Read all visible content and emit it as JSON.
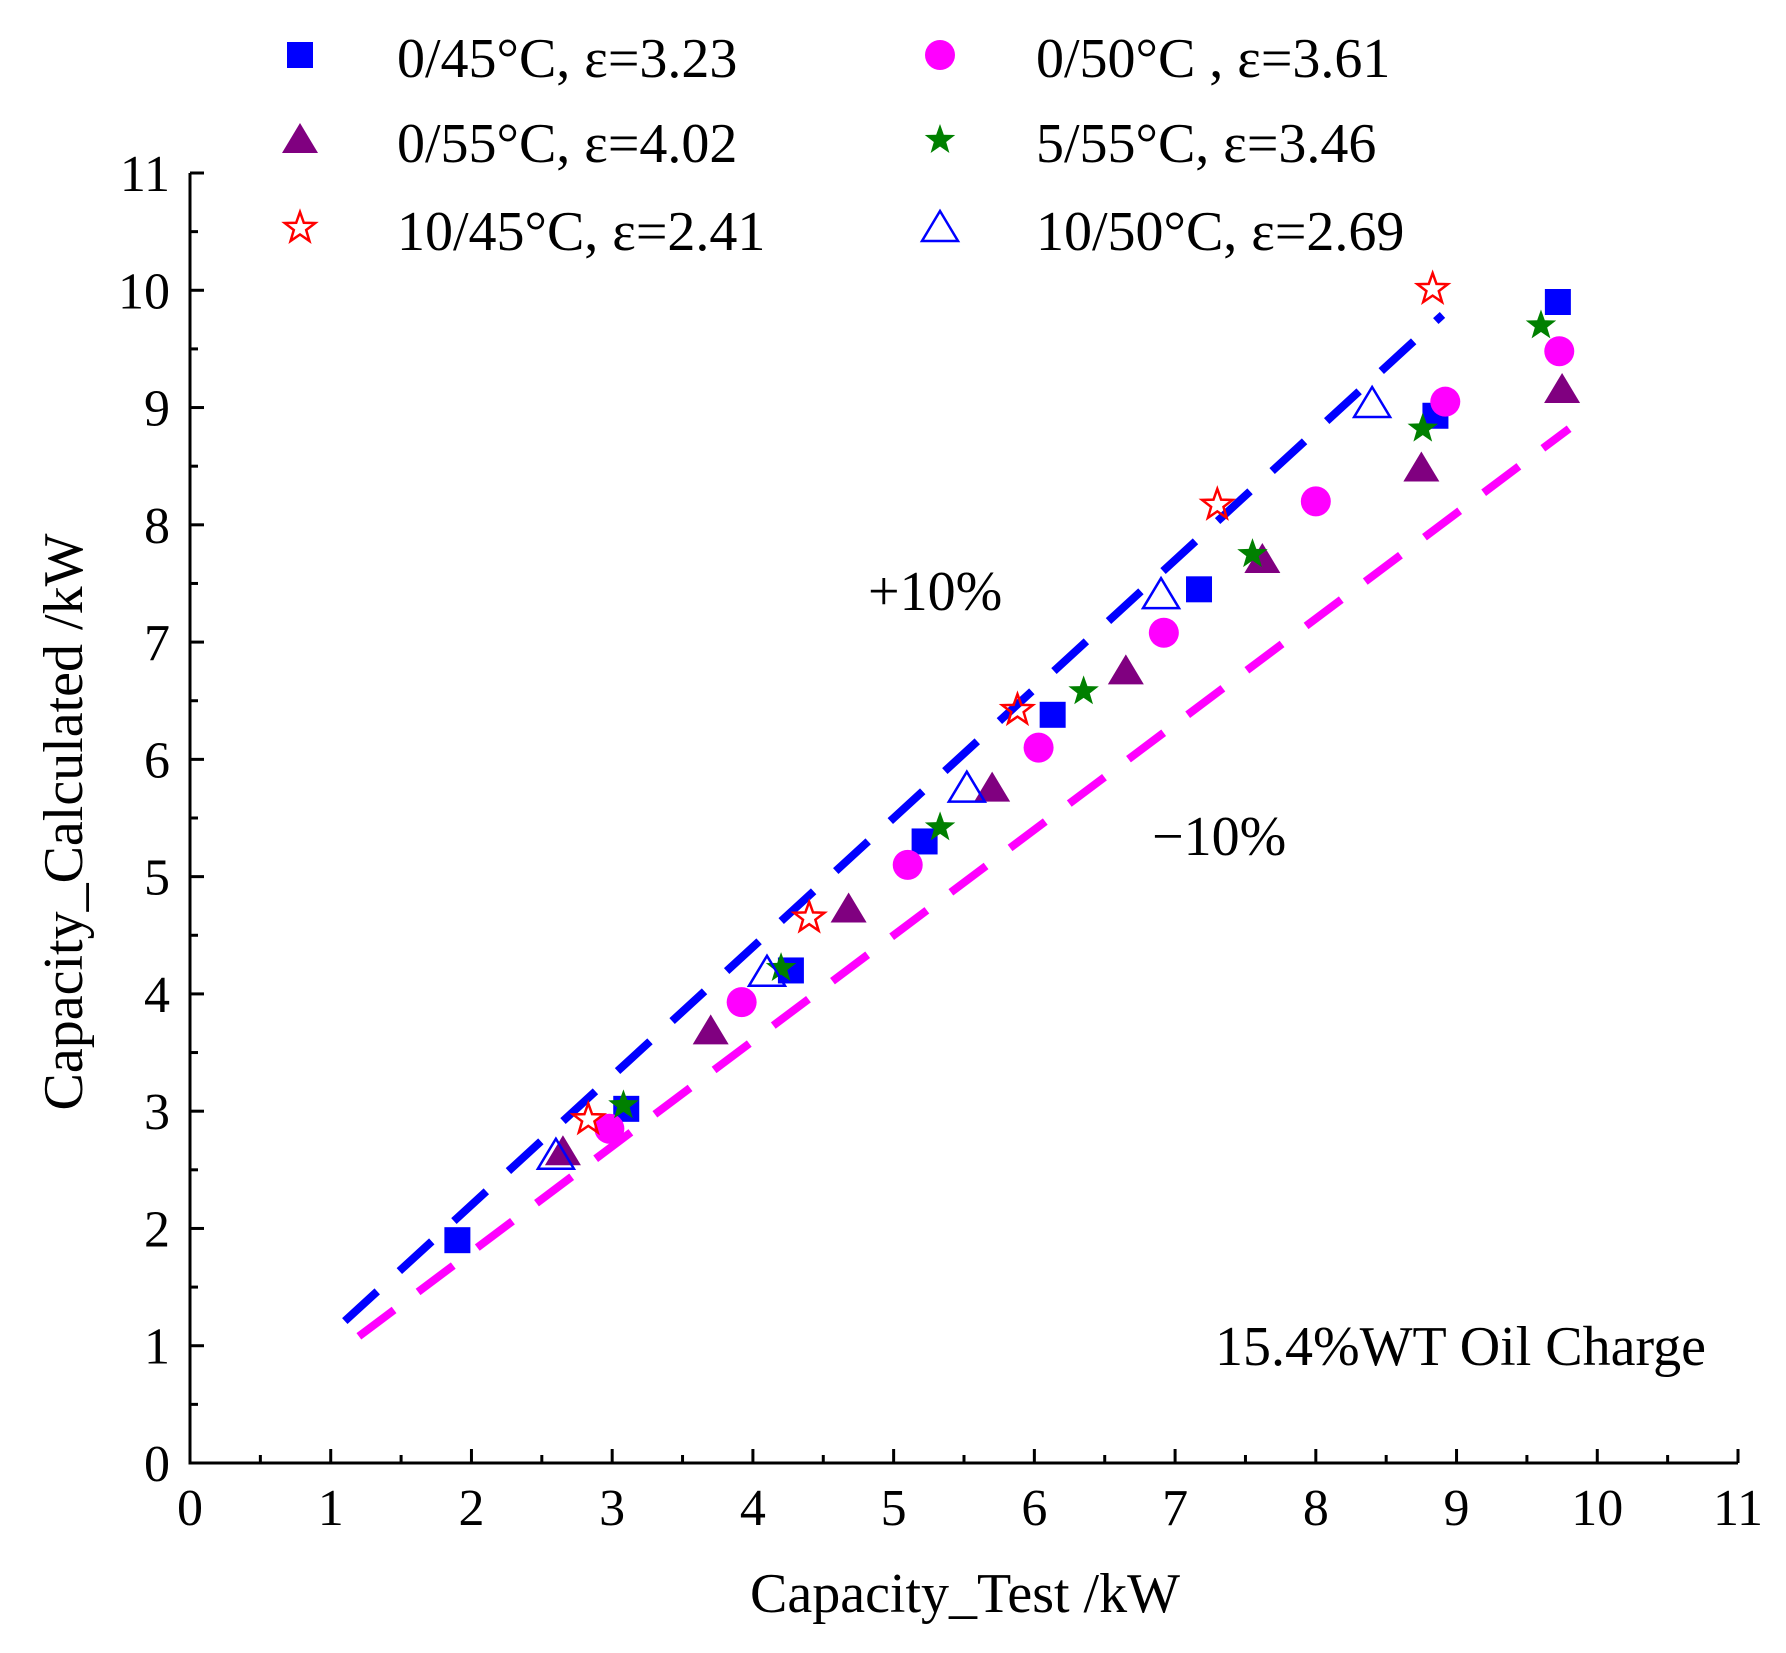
{
  "chart_data": {
    "type": "scatter",
    "title": "",
    "xlabel": "Capacity_Test /kW",
    "ylabel": "Capacity_Calculated /kW",
    "xlim": [
      0,
      11
    ],
    "ylim": [
      0,
      11
    ],
    "xticks": [
      "0",
      "1",
      "2",
      "3",
      "4",
      "5",
      "6",
      "7",
      "8",
      "9",
      "10",
      "11"
    ],
    "yticks": [
      "0",
      "1",
      "2",
      "3",
      "4",
      "5",
      "6",
      "7",
      "8",
      "9",
      "10",
      "11"
    ],
    "grid": false,
    "legend_position": "top",
    "series": [
      {
        "name": "0/45°C, ε=3.23",
        "marker": "square",
        "color": "#0000ff",
        "filled": true,
        "points": [
          [
            1.9,
            1.9
          ],
          [
            3.1,
            3.02
          ],
          [
            4.27,
            4.2
          ],
          [
            5.22,
            5.3
          ],
          [
            6.13,
            6.38
          ],
          [
            7.17,
            7.45
          ],
          [
            8.85,
            8.93
          ],
          [
            9.72,
            9.9
          ]
        ]
      },
      {
        "name": "0/50°C , ε=3.61",
        "marker": "circle",
        "color": "#ff00ff",
        "filled": true,
        "points": [
          [
            2.98,
            2.85
          ],
          [
            3.92,
            3.93
          ],
          [
            5.1,
            5.1
          ],
          [
            6.03,
            6.1
          ],
          [
            6.92,
            7.08
          ],
          [
            8.0,
            8.2
          ],
          [
            8.92,
            9.05
          ],
          [
            9.73,
            9.48
          ]
        ]
      },
      {
        "name": "0/55°C, ε=4.02",
        "marker": "triangle",
        "color": "#800080",
        "filled": true,
        "points": [
          [
            2.65,
            2.65
          ],
          [
            3.7,
            3.68
          ],
          [
            4.68,
            4.72
          ],
          [
            5.7,
            5.75
          ],
          [
            6.65,
            6.75
          ],
          [
            7.62,
            7.7
          ],
          [
            8.75,
            8.48
          ],
          [
            9.75,
            9.15
          ]
        ]
      },
      {
        "name": "5/55°C, ε=3.46",
        "marker": "star",
        "color": "#008000",
        "filled": true,
        "points": [
          [
            3.08,
            3.05
          ],
          [
            4.2,
            4.22
          ],
          [
            5.33,
            5.42
          ],
          [
            6.35,
            6.58
          ],
          [
            7.55,
            7.75
          ],
          [
            8.76,
            8.82
          ],
          [
            9.6,
            9.7
          ]
        ]
      },
      {
        "name": "10/45°C, ε=2.41",
        "marker": "star",
        "color": "#ff0000",
        "filled": false,
        "points": [
          [
            2.83,
            2.93
          ],
          [
            4.4,
            4.65
          ],
          [
            5.88,
            6.42
          ],
          [
            7.3,
            8.17
          ],
          [
            8.83,
            10.01
          ]
        ]
      },
      {
        "name": "10/50°C, ε=2.69",
        "marker": "triangle",
        "color": "#0000ff",
        "filled": false,
        "points": [
          [
            2.6,
            2.62
          ],
          [
            4.1,
            4.18
          ],
          [
            5.52,
            5.75
          ],
          [
            6.9,
            7.4
          ],
          [
            8.4,
            9.03
          ]
        ]
      }
    ],
    "reference_lines": [
      {
        "name": "+10%",
        "factor": 1.1,
        "x_range": [
          1.1,
          8.9
        ],
        "color": "#0000ff"
      },
      {
        "name": "−10%",
        "factor": 0.9,
        "x_range": [
          1.2,
          9.8
        ],
        "color": "#ff00ff"
      }
    ],
    "annotations": [
      {
        "id": "plus10",
        "text": "+10%"
      },
      {
        "id": "minus10",
        "text": "−10%"
      },
      {
        "id": "oil",
        "text": "15.4%WT Oil Charge"
      }
    ]
  }
}
